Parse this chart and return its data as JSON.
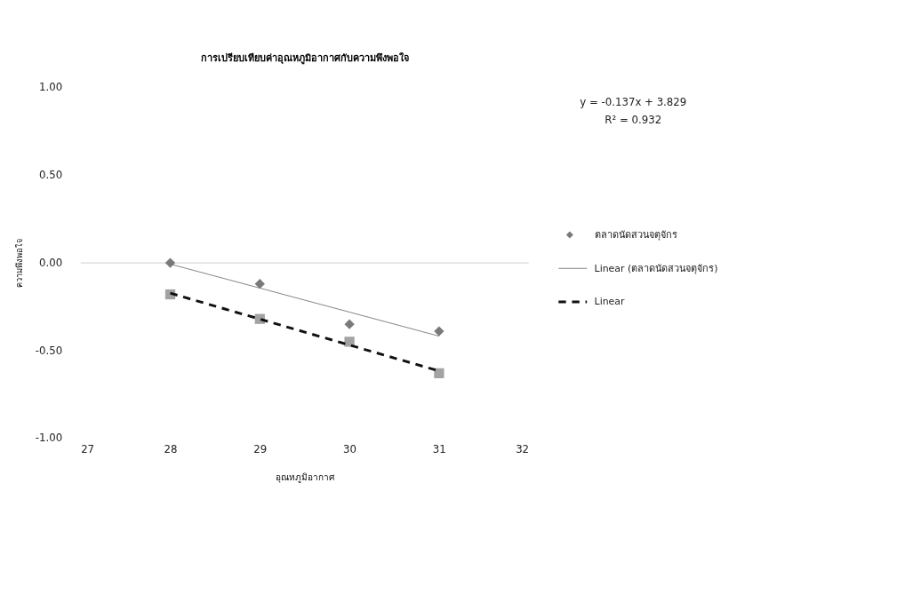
{
  "chart_data": {
    "type": "scatter",
    "title": "การเปรียบเทียบค่าอุณหภูมิอากาศกับความพึงพอใจ",
    "xlabel": "อุณหภูมิอากาศ",
    "ylabel": "ความพึงพอใจ",
    "x": [
      28,
      29,
      30,
      31
    ],
    "series": [
      {
        "name": "ตลาดนัดสวนจตุจักร",
        "color": "#7a7a7a",
        "marker": "diamond",
        "values": [
          0.0,
          -0.12,
          -0.35,
          -0.39
        ]
      },
      {
        "color": "#a3a3a3",
        "marker": "square",
        "values": [
          -0.18,
          -0.32,
          -0.45,
          -0.63
        ]
      },
      {
        "type": "line",
        "name": "Linear (ตลาดนัดสวนจตุจักร)",
        "color": "#6e6e6e",
        "line_style": "solid",
        "values": [
          -0.007,
          -0.144,
          -0.281,
          -0.418
        ]
      },
      {
        "type": "line",
        "name": "Linear",
        "color": "#111111",
        "line_style": "dashed",
        "values": [
          -0.173,
          -0.321,
          -0.469,
          -0.617
        ]
      }
    ],
    "xlim": [
      27,
      32
    ],
    "xticks": [
      27,
      28,
      29,
      30,
      31,
      32
    ],
    "ylim": [
      -1,
      1
    ],
    "yticks": [
      {
        "value": -1,
        "label": "-1.00"
      },
      {
        "value": -0.5,
        "label": "-0.50"
      },
      {
        "value": 0,
        "label": "0.00"
      },
      {
        "value": 0.5,
        "label": "0.50"
      },
      {
        "value": 1,
        "label": "1.00"
      }
    ],
    "ref_lines": [
      {
        "axis": "y",
        "value": 0,
        "color": "#d9d9d9"
      }
    ],
    "annotations": [
      "y = -0.137x + 3.829",
      "R² = 0.932"
    ],
    "legend": "right",
    "grid": false
  }
}
